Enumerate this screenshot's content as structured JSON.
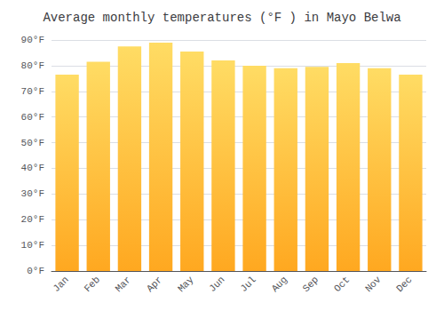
{
  "chart_data": {
    "type": "bar",
    "title": "Average monthly temperatures (°F ) in Mayo Belwa",
    "categories": [
      "Jan",
      "Feb",
      "Mar",
      "Apr",
      "May",
      "Jun",
      "Jul",
      "Aug",
      "Sep",
      "Oct",
      "Nov",
      "Dec"
    ],
    "values": [
      76.5,
      81.5,
      87.5,
      89.0,
      85.5,
      82.0,
      80.0,
      79.0,
      79.5,
      81.0,
      79.0,
      76.5
    ],
    "color": "#FFA820",
    "ylim": [
      0,
      90
    ],
    "yticks": [
      {
        "value": 0,
        "label": "0°F"
      },
      {
        "value": 10,
        "label": "10°F"
      },
      {
        "value": 20,
        "label": "20°F"
      },
      {
        "value": 30,
        "label": "30°F"
      },
      {
        "value": 40,
        "label": "40°F"
      },
      {
        "value": 50,
        "label": "50°F"
      },
      {
        "value": 60,
        "label": "60°F"
      },
      {
        "value": 70,
        "label": "70°F"
      },
      {
        "value": 80,
        "label": "80°F"
      },
      {
        "value": 90,
        "label": "90°F"
      }
    ],
    "grid": true
  }
}
